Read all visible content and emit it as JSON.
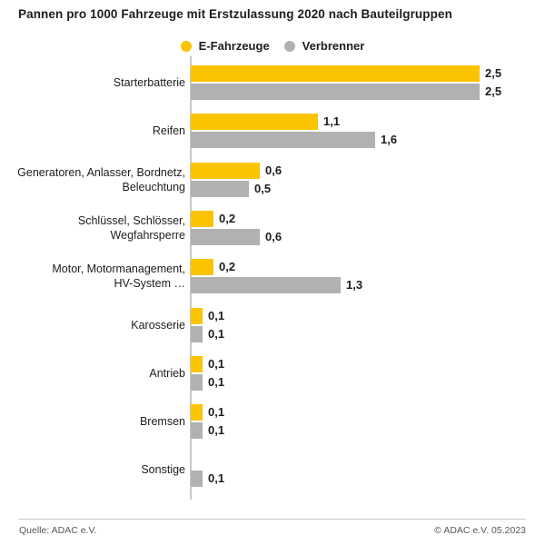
{
  "title": "Pannen pro 1000 Fahrzeuge mit Erstzulassung 2020 nach Bauteilgruppen",
  "legend": {
    "items": [
      {
        "label": "E-Fahrzeuge",
        "color": "#FBC400"
      },
      {
        "label": "Verbrenner",
        "color": "#B1B1B1"
      }
    ]
  },
  "chart_data": {
    "type": "bar",
    "orientation": "horizontal",
    "title": "Pannen pro 1000 Fahrzeuge mit Erstzulassung 2020 nach Bauteilgruppen",
    "xlabel": "",
    "ylabel": "",
    "xlim": [
      0,
      2.9
    ],
    "grid": false,
    "legend_position": "top-center",
    "categories": [
      [
        "Starterbatterie"
      ],
      [
        "Reifen"
      ],
      [
        "Generatoren, Anlasser, Bordnetz,",
        "Beleuchtung"
      ],
      [
        "Schlüssel, Schlösser,",
        "Wegfahrsperre"
      ],
      [
        "Motor, Motormanagement,",
        "HV-System …"
      ],
      [
        "Karosserie"
      ],
      [
        "Antrieb"
      ],
      [
        "Bremsen"
      ],
      [
        "Sonstige"
      ]
    ],
    "series": [
      {
        "name": "E-Fahrzeuge",
        "color": "#FBC400",
        "values": [
          2.5,
          1.1,
          0.6,
          0.2,
          0.2,
          0.1,
          0.1,
          0.1,
          null
        ],
        "labels": [
          "2,5",
          "1,1",
          "0,6",
          "0,2",
          "0,2",
          "0,1",
          "0,1",
          "0,1",
          ""
        ]
      },
      {
        "name": "Verbrenner",
        "color": "#B1B1B1",
        "values": [
          2.5,
          1.6,
          0.5,
          0.6,
          1.3,
          0.1,
          0.1,
          0.1,
          0.1
        ],
        "labels": [
          "2,5",
          "1,6",
          "0,5",
          "0,6",
          "1,3",
          "0,1",
          "0,1",
          "0,1",
          "0,1"
        ]
      }
    ]
  },
  "footer": {
    "source": "Quelle: ADAC e.V.",
    "copyright": "© ADAC e.V. 05.2023"
  },
  "colors": {
    "text": "#1d1d1b",
    "axis": "#c8c8c8",
    "divider": "#c9c9c9",
    "footer_text": "#575757",
    "background": "#ffffff"
  }
}
